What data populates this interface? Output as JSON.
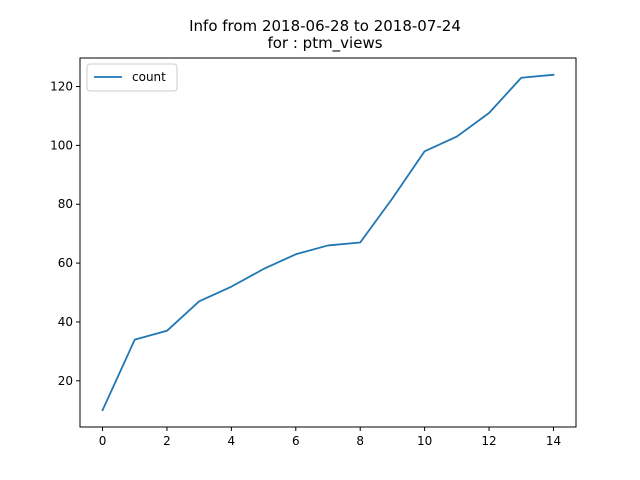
{
  "chart_data": {
    "type": "line",
    "title_line1": "Info from 2018-06-28 to 2018-07-24",
    "title_line2": "for  : ptm_views",
    "xlabel": "",
    "ylabel": "",
    "x": [
      0,
      1,
      2,
      3,
      4,
      5,
      6,
      7,
      8,
      9,
      10,
      11,
      12,
      13,
      14
    ],
    "series": [
      {
        "name": "count",
        "color": "#1f77b4",
        "values": [
          10,
          34,
          37,
          47,
          52,
          58,
          63,
          66,
          67,
          82,
          98,
          103,
          111,
          123,
          124
        ]
      }
    ],
    "xlim": [
      -0.7,
      14.7
    ],
    "ylim": [
      4.3,
      129.7
    ],
    "xticks": [
      0,
      2,
      4,
      6,
      8,
      10,
      12,
      14
    ],
    "yticks": [
      20,
      40,
      60,
      80,
      100,
      120
    ],
    "grid": false,
    "legend_position": "upper-left"
  }
}
